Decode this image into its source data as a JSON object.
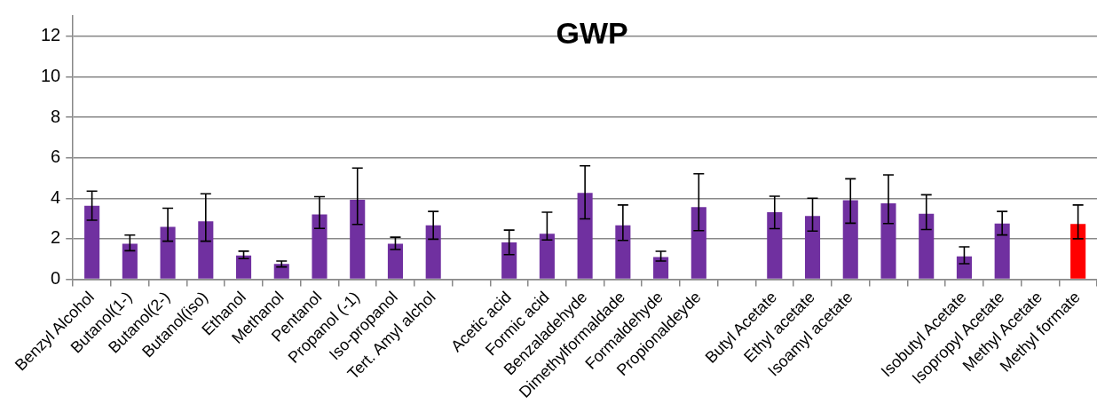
{
  "chart_data": {
    "type": "bar",
    "title": "GWP",
    "categories": [
      "Benzyl Alcohol",
      "Butanol(1-)",
      "Butanol(2-)",
      "Butanol(iso)",
      "Ethanol",
      "Methanol",
      "Pentanol",
      "Propanol (-1)",
      "Iso-propanol",
      "Tert. Amyl alchol",
      null,
      "Acetic acid",
      "Formic acid",
      "Benzaladehyde",
      "Dimethylformaldade",
      "Formaldehyde",
      "Propionaldeyde",
      null,
      "Butyl Acetate",
      "Ethyl acetate",
      "Isoamyl acetate",
      null,
      null,
      "Isobutyl Acetate",
      "Isopropyl Acetate",
      "Methyl Acetate",
      "Methyl formate"
    ],
    "values": [
      3.63,
      1.76,
      2.59,
      2.86,
      1.18,
      0.76,
      3.2,
      3.92,
      1.76,
      2.67,
      null,
      1.82,
      2.25,
      4.27,
      2.67,
      1.1,
      3.56,
      null,
      3.31,
      3.13,
      3.9,
      3.75,
      3.23,
      1.13,
      2.75,
      null,
      2.73
    ],
    "errors": [
      [
        2.92,
        4.35
      ],
      [
        1.41,
        2.18
      ],
      [
        1.88,
        3.51
      ],
      [
        1.88,
        4.22
      ],
      [
        1.02,
        1.39
      ],
      [
        0.61,
        0.9
      ],
      [
        2.51,
        4.08
      ],
      [
        2.71,
        5.49
      ],
      [
        1.47,
        2.08
      ],
      [
        1.98,
        3.35
      ],
      null,
      [
        1.22,
        2.43
      ],
      [
        1.94,
        3.31
      ],
      [
        2.98,
        5.6
      ],
      [
        1.92,
        3.67
      ],
      [
        0.9,
        1.38
      ],
      [
        2.4,
        5.21
      ],
      null,
      [
        2.5,
        4.1
      ],
      [
        2.38,
        4.0
      ],
      [
        2.77,
        4.96
      ],
      [
        2.75,
        5.15
      ],
      [
        2.46,
        4.17
      ],
      [
        0.77,
        1.6
      ],
      [
        2.19,
        3.35
      ],
      null,
      [
        2.0,
        3.67
      ]
    ],
    "colors": [
      "#7030a0",
      "#7030a0",
      "#7030a0",
      "#7030a0",
      "#7030a0",
      "#7030a0",
      "#7030a0",
      "#7030a0",
      "#7030a0",
      "#7030a0",
      "#7030a0",
      "#7030a0",
      "#7030a0",
      "#7030a0",
      "#7030a0",
      "#7030a0",
      "#7030a0",
      "#7030a0",
      "#7030a0",
      "#7030a0",
      "#7030a0",
      "#7030a0",
      "#7030a0",
      "#7030a0",
      "#7030a0",
      "#7030a0",
      "#ff0000"
    ],
    "ylim": [
      0,
      13
    ],
    "yticks": [
      0,
      2,
      4,
      6,
      8,
      10,
      12
    ],
    "grid": "y",
    "legend": false
  }
}
